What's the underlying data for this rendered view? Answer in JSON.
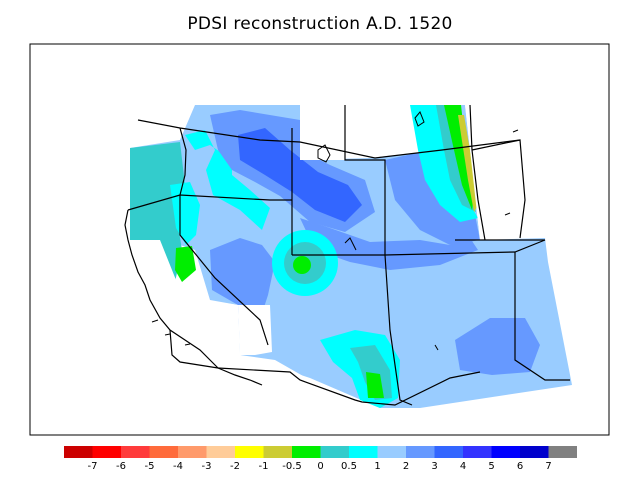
{
  "title": "PDSI reconstruction A.D. 1520",
  "legend": {
    "bins": [
      {
        "color": "#cc0000",
        "label": "-7"
      },
      {
        "color": "#ff0000",
        "label": "-6"
      },
      {
        "color": "#ff3b3b",
        "label": "-5"
      },
      {
        "color": "#ff6b3b",
        "label": "-4"
      },
      {
        "color": "#ff9a6b",
        "label": "-3"
      },
      {
        "color": "#ffcc99",
        "label": "-2"
      },
      {
        "color": "#ffff00",
        "label": "-1"
      },
      {
        "color": "#cccc33",
        "label": "-0.5"
      },
      {
        "color": "#00ee00",
        "label": "0"
      },
      {
        "color": "#33cccc",
        "label": "0.5"
      },
      {
        "color": "#00ffff",
        "label": "1"
      },
      {
        "color": "#99ccff",
        "label": "2"
      },
      {
        "color": "#6699ff",
        "label": "3"
      },
      {
        "color": "#3366ff",
        "label": "4"
      },
      {
        "color": "#3333ff",
        "label": "5"
      },
      {
        "color": "#0000ff",
        "label": "6"
      },
      {
        "color": "#0000cc",
        "label": "7"
      },
      {
        "color": "#808080",
        "label": ""
      }
    ]
  }
}
